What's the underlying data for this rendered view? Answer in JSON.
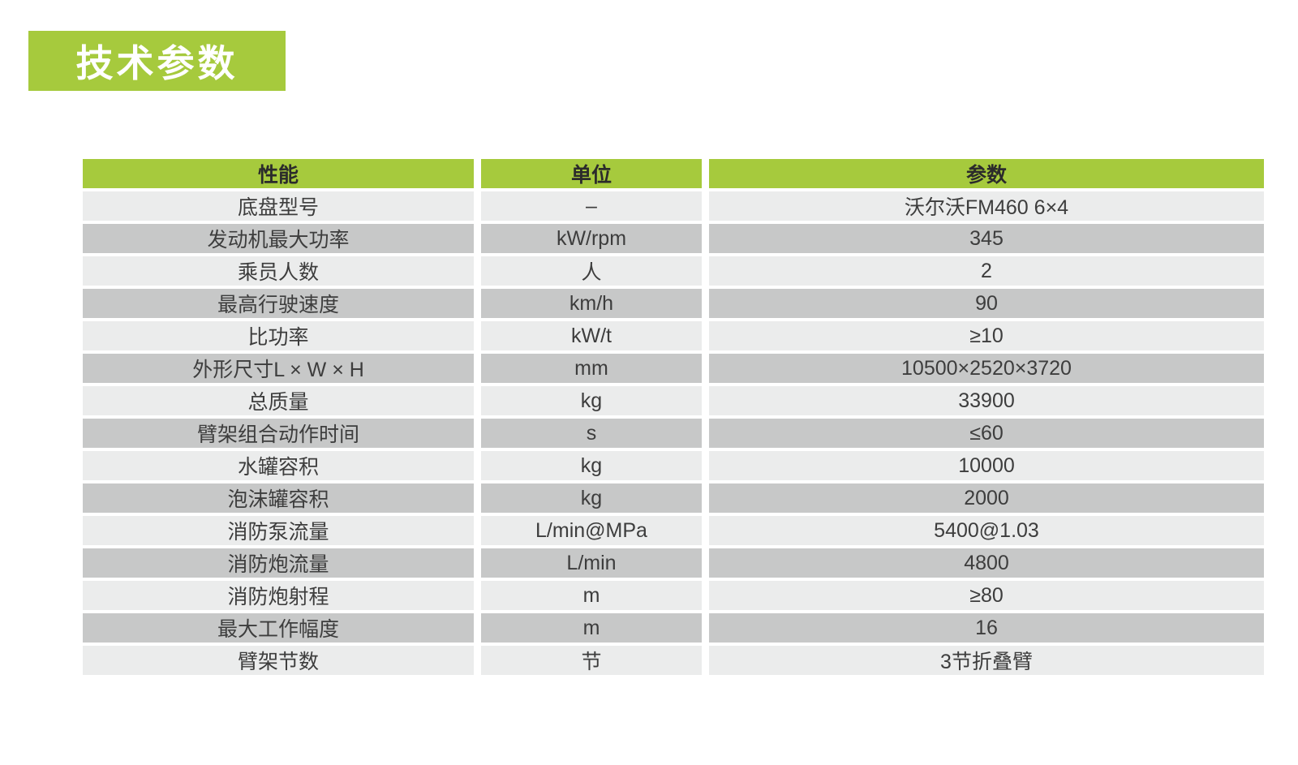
{
  "header": {
    "title": "技术参数"
  },
  "colors": {
    "accent_green": "#a6ca3d",
    "row_light": "#ebecec",
    "row_dark": "#c7c8c8",
    "title_text": "#ffffff",
    "body_text": "#3d3d3d"
  },
  "table": {
    "headers": [
      "性能",
      "单位",
      "参数"
    ],
    "rows": [
      {
        "name": "底盘型号",
        "unit": "–",
        "value": "沃尔沃FM460 6×4"
      },
      {
        "name": "发动机最大功率",
        "unit": "kW/rpm",
        "value": "345"
      },
      {
        "name": "乘员人数",
        "unit": "人",
        "value": "2"
      },
      {
        "name": "最高行驶速度",
        "unit": "km/h",
        "value": "90"
      },
      {
        "name": "比功率",
        "unit": "kW/t",
        "value": "≥10"
      },
      {
        "name": "外形尺寸L × W × H",
        "unit": "mm",
        "value": "10500×2520×3720"
      },
      {
        "name": "总质量",
        "unit": "kg",
        "value": "33900"
      },
      {
        "name": "臂架组合动作时间",
        "unit": "s",
        "value": "≤60"
      },
      {
        "name": "水罐容积",
        "unit": "kg",
        "value": "10000"
      },
      {
        "name": "泡沫罐容积",
        "unit": "kg",
        "value": "2000"
      },
      {
        "name": "消防泵流量",
        "unit": "L/min@MPa",
        "value": "5400@1.03"
      },
      {
        "name": "消防炮流量",
        "unit": "L/min",
        "value": "4800"
      },
      {
        "name": "消防炮射程",
        "unit": "m",
        "value": "≥80"
      },
      {
        "name": "最大工作幅度",
        "unit": "m",
        "value": "16"
      },
      {
        "name": "臂架节数",
        "unit": "节",
        "value": "3节折叠臂"
      }
    ]
  }
}
